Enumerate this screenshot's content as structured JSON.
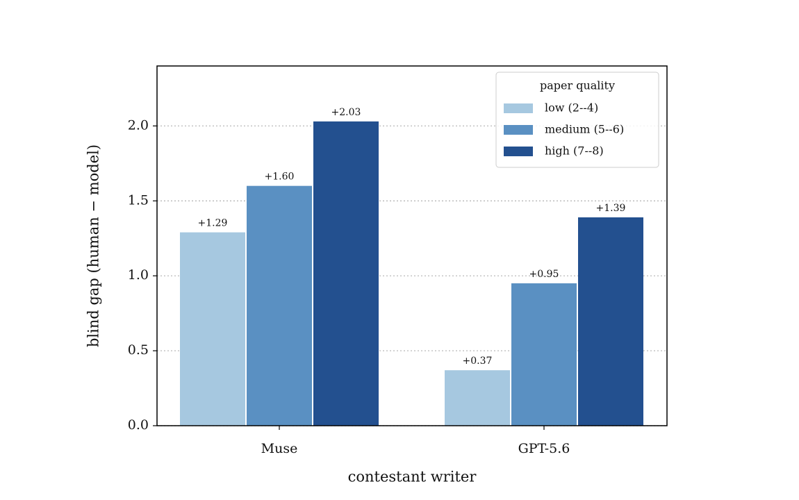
{
  "chart_data": {
    "type": "bar",
    "categories": [
      "Muse",
      "GPT-5.6"
    ],
    "series": [
      {
        "name": "low (2--4)",
        "color": "#a6c8e0",
        "values": [
          1.29,
          0.37
        ],
        "value_labels": [
          "+1.29",
          "+0.37"
        ]
      },
      {
        "name": "medium (5--6)",
        "color": "#5a90c2",
        "values": [
          1.6,
          0.95
        ],
        "value_labels": [
          "+1.60",
          "+0.95"
        ]
      },
      {
        "name": "high (7--8)",
        "color": "#23508f",
        "values": [
          2.03,
          1.39
        ],
        "value_labels": [
          "+2.03",
          "+1.39"
        ]
      }
    ],
    "xlabel": "contestant writer",
    "ylabel": "blind gap (human − model)",
    "legend_title": "paper quality",
    "legend_position": "upper right",
    "ylim": [
      0,
      2.4
    ],
    "yticks": [
      {
        "value": 0,
        "label": "0.0"
      },
      {
        "value": 0.5,
        "label": "0.5"
      },
      {
        "value": 1,
        "label": "1.0"
      },
      {
        "value": 1.5,
        "label": "1.5"
      },
      {
        "value": 2,
        "label": "2.0"
      }
    ],
    "grid": true
  }
}
